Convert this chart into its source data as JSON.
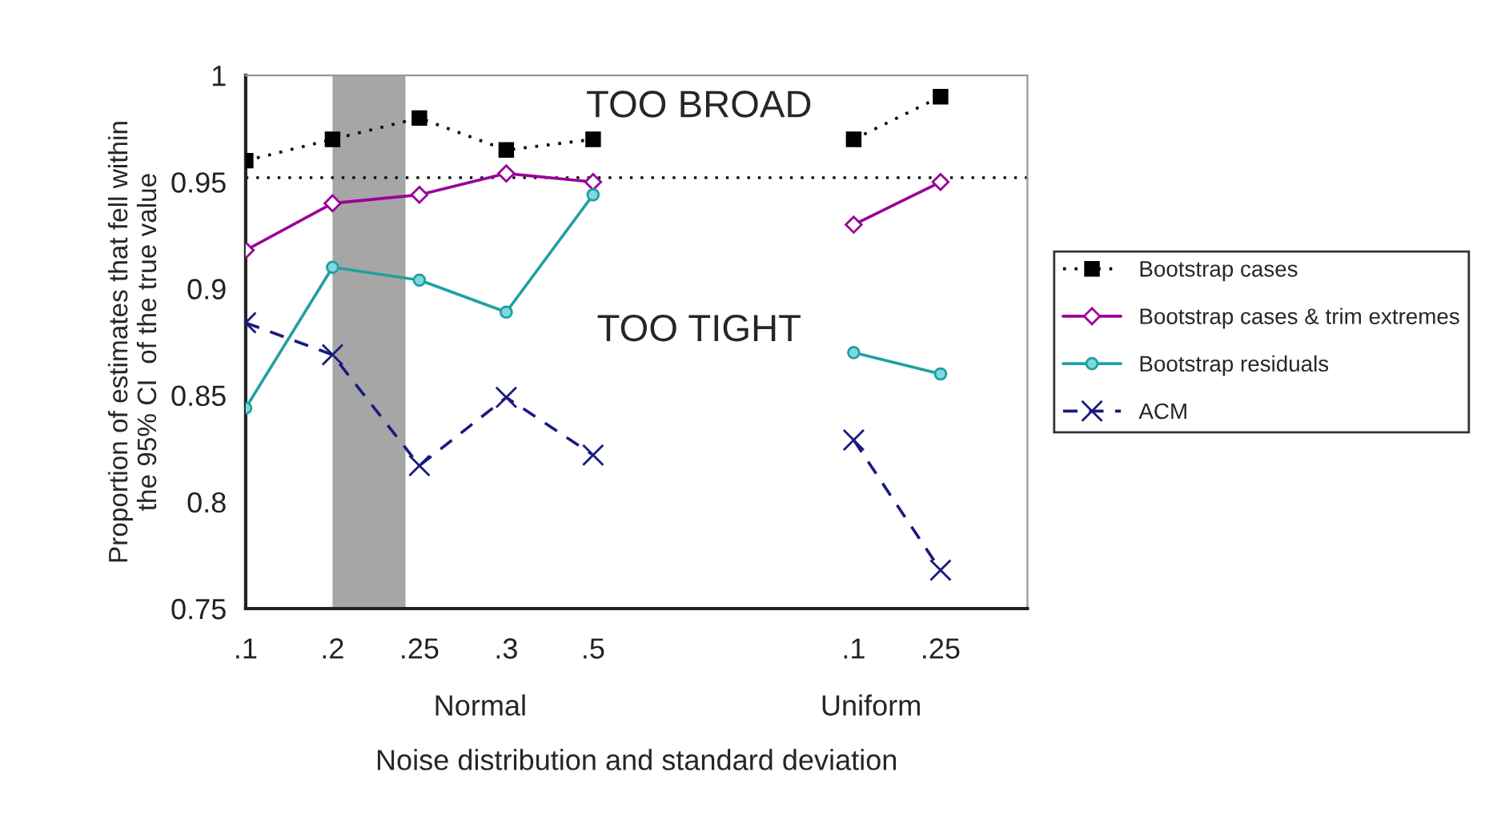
{
  "chart_data": {
    "type": "line",
    "xlabel": "Noise distribution and standard deviation",
    "ylabel": "Proportion of estimates that fell within\nthe 95% CI  of the true value",
    "categories": [
      ".1",
      ".2",
      ".25",
      ".3",
      ".5",
      null,
      null,
      ".1",
      ".25",
      null
    ],
    "ylim": [
      0.75,
      1
    ],
    "yticks": [
      0.75,
      0.8,
      0.85,
      0.9,
      0.95,
      1
    ],
    "grid": false,
    "legend": "right",
    "series": [
      {
        "name": "Bootstrap cases",
        "color": "#000000",
        "marker": "square",
        "line_style": "dotted",
        "values": [
          0.96,
          0.97,
          0.98,
          0.965,
          0.97,
          null,
          null,
          0.97,
          0.99,
          null
        ]
      },
      {
        "name": "Bootstrap cases & trim extremes",
        "color": "#990099",
        "marker": "diamond",
        "line_style": "solid",
        "values": [
          0.918,
          0.94,
          0.944,
          0.954,
          0.95,
          null,
          null,
          0.93,
          0.95,
          null
        ]
      },
      {
        "name": "Bootstrap residuals",
        "color": "#20a0a0",
        "marker": "circle",
        "line_style": "solid",
        "values": [
          0.844,
          0.91,
          0.904,
          0.889,
          0.944,
          null,
          null,
          0.87,
          0.86,
          null
        ]
      },
      {
        "name": "ACM",
        "color": "#1a1a80",
        "marker": "cross",
        "line_style": "dashed",
        "values": [
          0.884,
          0.869,
          0.817,
          0.849,
          0.822,
          null,
          null,
          0.829,
          0.768,
          null
        ]
      }
    ],
    "ref_lines": [
      {
        "axis": "y",
        "value": 0.952,
        "color": "#000000",
        "line_style": "dotted"
      }
    ],
    "bands": [
      {
        "axis": "x",
        "from": ".2",
        "to": ".25",
        "color": "#a6a6a6"
      }
    ],
    "annotations": [
      "TOO BROAD",
      "TOO TIGHT",
      "Normal",
      "Uniform"
    ]
  }
}
